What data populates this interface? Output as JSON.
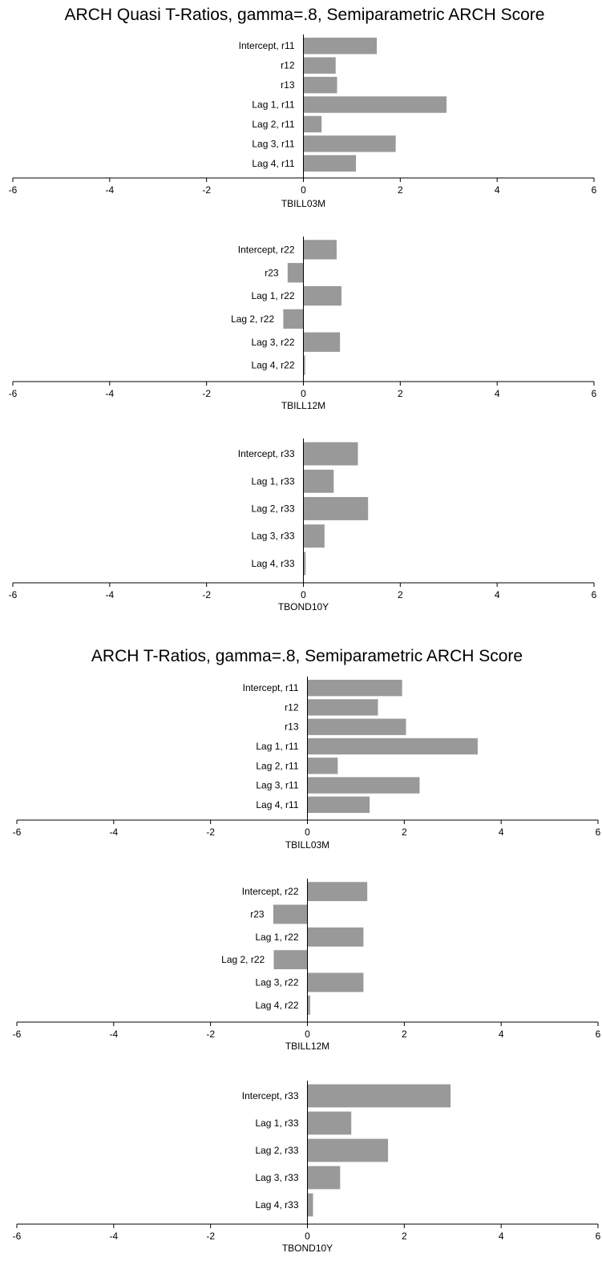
{
  "colors": {
    "bar": "#999999",
    "axis": "#000000",
    "background": "#ffffff"
  },
  "figures": [
    {
      "title": "ARCH Quasi T-Ratios, gamma=.8, Semiparametric ARCH Score"
    },
    {
      "title": "ARCH T-Ratios, gamma=.8, Semiparametric ARCH Score"
    }
  ],
  "chart_data": [
    {
      "type": "bar",
      "orientation": "horizontal",
      "title": "ARCH Quasi T-Ratios, gamma=.8, Semiparametric ARCH Score",
      "xlabel": "TBILL03M",
      "xlim": [
        -6,
        6
      ],
      "xticks": [
        "-6",
        "-4",
        "-2",
        "0",
        "2",
        "4",
        "6"
      ],
      "categories": [
        "Intercept, r11",
        "r12",
        "r13",
        "Lag 1, r11",
        "Lag 2, r11",
        "Lag 3, r11",
        "Lag 4, r11"
      ],
      "values": [
        1.52,
        0.67,
        0.7,
        2.96,
        0.38,
        1.91,
        1.09
      ]
    },
    {
      "type": "bar",
      "orientation": "horizontal",
      "xlabel": "TBILL12M",
      "xlim": [
        -6,
        6
      ],
      "xticks": [
        "-6",
        "-4",
        "-2",
        "0",
        "2",
        "4",
        "6"
      ],
      "categories": [
        "Intercept, r22",
        "r23",
        "Lag 1, r22",
        "Lag 2, r22",
        "Lag 3, r22",
        "Lag 4, r22"
      ],
      "values": [
        0.69,
        -0.33,
        0.79,
        -0.42,
        0.76,
        0.04
      ]
    },
    {
      "type": "bar",
      "orientation": "horizontal",
      "xlabel": "TBOND10Y",
      "xlim": [
        -6,
        6
      ],
      "xticks": [
        "-6",
        "-4",
        "-2",
        "0",
        "2",
        "4",
        "6"
      ],
      "categories": [
        "Intercept, r33",
        "Lag 1, r33",
        "Lag 2, r33",
        "Lag 3, r33",
        "Lag 4, r33"
      ],
      "values": [
        1.13,
        0.63,
        1.34,
        0.44,
        0.05
      ]
    },
    {
      "type": "bar",
      "orientation": "horizontal",
      "title": "ARCH T-Ratios, gamma=.8, Semiparametric ARCH Score",
      "xlabel": "TBILL03M",
      "xlim": [
        -6,
        6
      ],
      "xticks": [
        "-6",
        "-4",
        "-2",
        "0",
        "2",
        "4",
        "6"
      ],
      "categories": [
        "Intercept, r11",
        "r12",
        "r13",
        "Lag 1, r11",
        "Lag 2, r11",
        "Lag 3, r11",
        "Lag 4, r11"
      ],
      "values": [
        1.96,
        1.46,
        2.04,
        3.52,
        0.63,
        2.32,
        1.29
      ]
    },
    {
      "type": "bar",
      "orientation": "horizontal",
      "xlabel": "TBILL12M",
      "xlim": [
        -6,
        6
      ],
      "xticks": [
        "-6",
        "-4",
        "-2",
        "0",
        "2",
        "4",
        "6"
      ],
      "categories": [
        "Intercept, r22",
        "r23",
        "Lag 1, r22",
        "Lag 2, r22",
        "Lag 3, r22",
        "Lag 4, r22"
      ],
      "values": [
        1.24,
        -0.71,
        1.16,
        -0.7,
        1.16,
        0.06
      ]
    },
    {
      "type": "bar",
      "orientation": "horizontal",
      "xlabel": "TBOND10Y",
      "xlim": [
        -6,
        6
      ],
      "xticks": [
        "-6",
        "-4",
        "-2",
        "0",
        "2",
        "4",
        "6"
      ],
      "categories": [
        "Intercept, r33",
        "Lag 1, r33",
        "Lag 2, r33",
        "Lag 3, r33",
        "Lag 4, r33"
      ],
      "values": [
        2.96,
        0.91,
        1.67,
        0.68,
        0.12
      ]
    }
  ]
}
